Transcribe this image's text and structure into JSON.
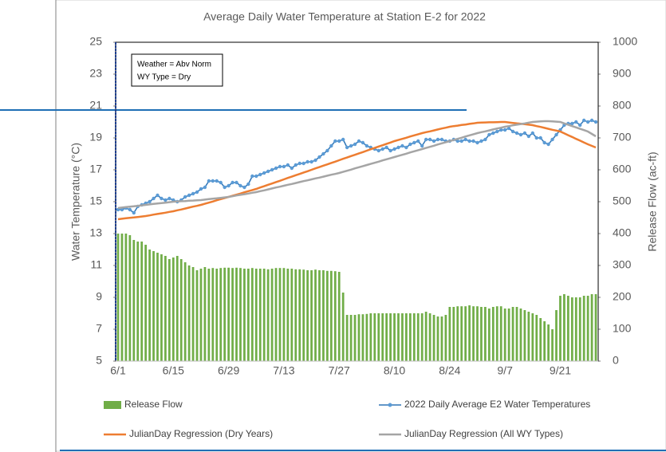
{
  "chart_data": {
    "type": "bar",
    "title": "Average Daily Water Temperature at Station E-2 for 2022",
    "y_label": "Water Temperature (°C)",
    "y2_label": "Release Flow (ac-ft)",
    "annotations": [
      "Weather = Abv Norm",
      "WY Type = Dry"
    ],
    "categories": [
      "6/1",
      null,
      null,
      null,
      null,
      null,
      null,
      null,
      null,
      null,
      null,
      null,
      null,
      null,
      "6/15",
      null,
      null,
      null,
      null,
      null,
      null,
      null,
      null,
      null,
      null,
      null,
      null,
      null,
      "6/29",
      null,
      null,
      null,
      null,
      null,
      null,
      null,
      null,
      null,
      null,
      null,
      null,
      null,
      "7/13",
      null,
      null,
      null,
      null,
      null,
      null,
      null,
      null,
      null,
      null,
      null,
      null,
      null,
      "7/27",
      null,
      null,
      null,
      null,
      null,
      null,
      null,
      null,
      null,
      null,
      null,
      null,
      null,
      "8/10",
      null,
      null,
      null,
      null,
      null,
      null,
      null,
      null,
      null,
      null,
      null,
      null,
      null,
      "8/24",
      null,
      null,
      null,
      null,
      null,
      null,
      null,
      null,
      null,
      null,
      null,
      null,
      null,
      "9/7",
      null,
      null,
      null,
      null,
      null,
      null,
      null,
      null,
      null,
      null,
      null,
      null,
      null,
      "9/21",
      null,
      null,
      null,
      null,
      null,
      null,
      null,
      null,
      null
    ],
    "ylim": [
      5,
      25
    ],
    "yticks": [
      5,
      7,
      9,
      11,
      13,
      15,
      17,
      19,
      21,
      23,
      25
    ],
    "y2lim": [
      0,
      1000
    ],
    "y2ticks": [
      0,
      100,
      200,
      300,
      400,
      500,
      600,
      700,
      800,
      900,
      1000
    ],
    "legend": "bottom",
    "series": [
      {
        "name": "Release Flow",
        "type": "bar",
        "axis": "y2",
        "color": "#70ad47",
        "values": [
          400,
          400,
          400,
          395,
          380,
          375,
          375,
          365,
          350,
          345,
          340,
          335,
          330,
          320,
          325,
          330,
          320,
          310,
          300,
          295,
          285,
          290,
          295,
          290,
          292,
          290,
          292,
          293,
          293,
          292,
          293,
          292,
          290,
          290,
          292,
          290,
          290,
          290,
          288,
          290,
          292,
          292,
          292,
          290,
          290,
          288,
          288,
          287,
          285,
          285,
          287,
          285,
          285,
          283,
          283,
          282,
          280,
          215,
          145,
          145,
          145,
          147,
          147,
          148,
          150,
          150,
          150,
          150,
          150,
          150,
          150,
          150,
          150,
          150,
          150,
          150,
          150,
          150,
          155,
          150,
          145,
          140,
          140,
          145,
          170,
          170,
          172,
          172,
          172,
          175,
          172,
          172,
          170,
          170,
          165,
          170,
          172,
          172,
          165,
          165,
          170,
          170,
          165,
          160,
          155,
          150,
          145,
          135,
          125,
          115,
          100,
          160,
          205,
          210,
          205,
          200,
          200,
          200,
          205,
          205,
          210,
          210
        ]
      },
      {
        "name": "2022 Daily Average E2 Water Temperatures",
        "type": "line",
        "markers": true,
        "color": "#2e75b6",
        "marker_color": "#5b9bd5",
        "values": [
          14.5,
          14.5,
          14.6,
          14.5,
          14.3,
          14.7,
          14.8,
          14.9,
          15.0,
          15.2,
          15.4,
          15.2,
          15.1,
          15.2,
          15.1,
          15.0,
          15.1,
          15.3,
          15.4,
          15.5,
          15.6,
          15.8,
          15.9,
          16.3,
          16.3,
          16.3,
          16.2,
          15.9,
          16.0,
          16.2,
          16.2,
          16.0,
          15.9,
          16.1,
          16.6,
          16.6,
          16.7,
          16.8,
          16.9,
          17.0,
          17.1,
          17.2,
          17.2,
          17.3,
          17.1,
          17.3,
          17.4,
          17.4,
          17.5,
          17.5,
          17.6,
          17.8,
          18.0,
          18.2,
          18.5,
          18.8,
          18.8,
          18.9,
          18.4,
          18.5,
          18.6,
          18.8,
          18.7,
          18.5,
          18.4,
          18.3,
          18.2,
          18.3,
          18.4,
          18.2,
          18.3,
          18.4,
          18.5,
          18.4,
          18.6,
          18.7,
          18.8,
          18.5,
          18.9,
          18.9,
          18.8,
          18.9,
          18.9,
          18.8,
          18.8,
          18.9,
          18.8,
          18.8,
          18.9,
          18.8,
          18.8,
          18.7,
          18.8,
          18.9,
          19.2,
          19.3,
          19.4,
          19.5,
          19.5,
          19.6,
          19.4,
          19.3,
          19.2,
          19.3,
          19.1,
          19.3,
          19.0,
          19.0,
          18.7,
          18.6,
          18.9,
          19.2,
          19.5,
          19.8,
          19.9,
          19.9,
          20.0,
          19.8,
          20.1,
          20.0,
          20.1,
          20.0
        ]
      },
      {
        "name": "JulianDay Regression (Dry Years)",
        "type": "line",
        "color": "#ed7d31",
        "values": [
          13.9,
          13.93,
          13.96,
          13.99,
          14.01,
          14.04,
          14.07,
          14.1,
          14.14,
          14.19,
          14.23,
          14.27,
          14.31,
          14.36,
          14.4,
          14.46,
          14.51,
          14.57,
          14.63,
          14.69,
          14.74,
          14.8,
          14.87,
          14.94,
          15.01,
          15.09,
          15.16,
          15.23,
          15.3,
          15.37,
          15.44,
          15.51,
          15.59,
          15.66,
          15.73,
          15.8,
          15.89,
          15.97,
          16.06,
          16.14,
          16.23,
          16.31,
          16.4,
          16.49,
          16.57,
          16.66,
          16.74,
          16.83,
          16.91,
          17.0,
          17.09,
          17.17,
          17.26,
          17.34,
          17.43,
          17.51,
          17.6,
          17.69,
          17.77,
          17.86,
          17.94,
          18.03,
          18.11,
          18.2,
          18.29,
          18.37,
          18.46,
          18.54,
          18.63,
          18.71,
          18.8,
          18.87,
          18.94,
          19.01,
          19.09,
          19.16,
          19.23,
          19.3,
          19.36,
          19.41,
          19.47,
          19.53,
          19.59,
          19.64,
          19.7,
          19.74,
          19.77,
          19.81,
          19.84,
          19.88,
          19.91,
          19.95,
          19.96,
          19.97,
          19.98,
          19.98,
          19.99,
          20.0,
          20.0,
          19.97,
          19.94,
          19.91,
          19.89,
          19.86,
          19.83,
          19.8,
          19.74,
          19.69,
          19.63,
          19.57,
          19.51,
          19.46,
          19.4,
          19.29,
          19.17,
          19.06,
          18.94,
          18.83,
          18.71,
          18.6,
          18.5,
          18.4
        ]
      },
      {
        "name": "JulianDay Regression (All WY Types)",
        "type": "line",
        "color": "#a5a5a5",
        "values": [
          14.6,
          14.63,
          14.66,
          14.69,
          14.71,
          14.74,
          14.77,
          14.8,
          14.83,
          14.86,
          14.89,
          14.91,
          14.94,
          14.97,
          15.0,
          15.01,
          15.03,
          15.04,
          15.06,
          15.07,
          15.09,
          15.1,
          15.13,
          15.16,
          15.19,
          15.21,
          15.24,
          15.27,
          15.3,
          15.34,
          15.39,
          15.43,
          15.47,
          15.51,
          15.56,
          15.6,
          15.66,
          15.71,
          15.77,
          15.83,
          15.89,
          15.94,
          16.0,
          16.06,
          16.11,
          16.17,
          16.23,
          16.29,
          16.34,
          16.4,
          16.46,
          16.51,
          16.57,
          16.63,
          16.69,
          16.74,
          16.8,
          16.87,
          16.94,
          17.01,
          17.09,
          17.16,
          17.23,
          17.3,
          17.37,
          17.44,
          17.51,
          17.59,
          17.66,
          17.73,
          17.8,
          17.87,
          17.94,
          18.01,
          18.09,
          18.16,
          18.23,
          18.3,
          18.37,
          18.44,
          18.51,
          18.59,
          18.66,
          18.73,
          18.8,
          18.87,
          18.94,
          19.01,
          19.09,
          19.16,
          19.23,
          19.3,
          19.36,
          19.41,
          19.47,
          19.53,
          19.59,
          19.64,
          19.7,
          19.74,
          19.79,
          19.83,
          19.87,
          19.91,
          19.96,
          20.0,
          20.02,
          20.04,
          20.05,
          20.05,
          20.04,
          20.02,
          20.0,
          19.91,
          19.83,
          19.74,
          19.66,
          19.57,
          19.49,
          19.4,
          19.25,
          19.1
        ]
      }
    ]
  }
}
